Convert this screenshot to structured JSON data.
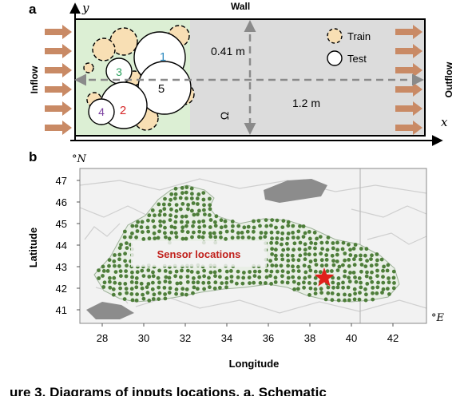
{
  "panel_a": {
    "label": "a",
    "y_axis": "y",
    "x_axis": "x",
    "wall": "Wall",
    "inflow": "Inflow",
    "outflow": "Outflow",
    "height_label": "0.41 m",
    "length_label": "1.2 m",
    "domain_symbol": "Ω",
    "legend": {
      "train": "Train",
      "test": "Test"
    },
    "cylinders": [
      {
        "label": "1",
        "color": "#2e8bc0"
      },
      {
        "label": "3",
        "color": "#2ca25f"
      },
      {
        "label": "5",
        "color": "#111111"
      },
      {
        "label": "2",
        "color": "#d62728"
      },
      {
        "label": "4",
        "color": "#7b3fa0"
      }
    ]
  },
  "panel_b": {
    "label": "b",
    "north_unit": "°N",
    "east_unit": "°E",
    "xlabel": "Longitude",
    "ylabel": "Latitude",
    "sensor_label": "Sensor locations",
    "x_ticks": [
      "28",
      "30",
      "32",
      "34",
      "36",
      "38",
      "40",
      "42"
    ],
    "y_ticks": [
      "47",
      "46",
      "45",
      "44",
      "43",
      "42",
      "41"
    ],
    "star_color": "#e0201b",
    "sensor_color": "#4e7e3a"
  },
  "caption_fragment": "ure 3. Diagrams of inputs locations. a, Schematic"
}
